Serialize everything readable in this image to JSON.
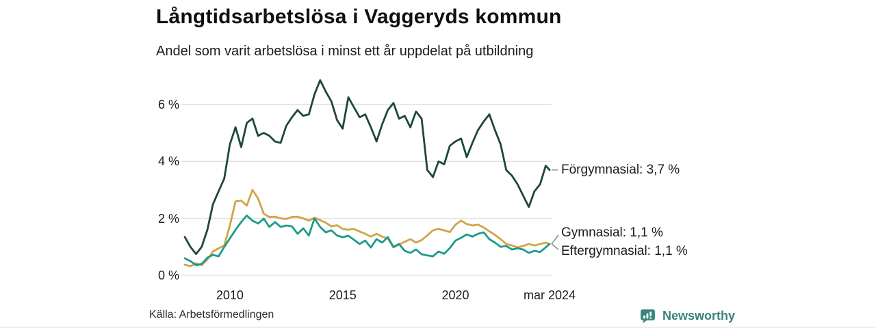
{
  "header": {
    "title": "Långtidsarbetslösa i Vaggeryds kommun",
    "subtitle": "Andel som varit arbetslösa i minst ett år uppdelat på utbildning"
  },
  "chart_data": {
    "type": "line",
    "title": "Långtidsarbetslösa i Vaggeryds kommun",
    "subtitle": "Andel som varit arbetslösa i minst ett år uppdelat på utbildning",
    "unit": "%",
    "grid": "horizontal",
    "legend_position": "end-of-line-annotations",
    "xlim": [
      2008,
      2024.17
    ],
    "ylim": [
      0,
      7.2
    ],
    "y_ticks": [
      0,
      2,
      4,
      6
    ],
    "y_tick_labels": [
      "0 %",
      "2 %",
      "4 %",
      "6 %"
    ],
    "x_ticks": [
      {
        "label": "2010",
        "year": 2010
      },
      {
        "label": "2015",
        "year": 2015
      },
      {
        "label": "2020",
        "year": 2020
      },
      {
        "label": "mar 2024",
        "year": 2024.17
      }
    ],
    "x": [
      2008,
      2008.25,
      2008.5,
      2008.75,
      2009,
      2009.25,
      2009.5,
      2009.75,
      2010,
      2010.25,
      2010.5,
      2010.75,
      2011,
      2011.25,
      2011.5,
      2011.75,
      2012,
      2012.25,
      2012.5,
      2012.75,
      2013,
      2013.25,
      2013.5,
      2013.75,
      2014,
      2014.25,
      2014.5,
      2014.75,
      2015,
      2015.25,
      2015.5,
      2015.75,
      2016,
      2016.25,
      2016.5,
      2016.75,
      2017,
      2017.25,
      2017.5,
      2017.75,
      2018,
      2018.25,
      2018.5,
      2018.75,
      2019,
      2019.25,
      2019.5,
      2019.75,
      2020,
      2020.25,
      2020.5,
      2020.75,
      2021,
      2021.25,
      2021.5,
      2021.75,
      2022,
      2022.25,
      2022.5,
      2022.75,
      2023,
      2023.25,
      2023.5,
      2023.75,
      2024,
      2024.17
    ],
    "series": [
      {
        "name": "Förgymnasial",
        "end_label": "Förgymnasial: 3,7 %",
        "end_value_pct": 3.7,
        "color": "#1d463c",
        "values": [
          1.35,
          1.0,
          0.75,
          1.0,
          1.6,
          2.5,
          2.95,
          3.4,
          4.6,
          5.2,
          4.5,
          5.35,
          5.5,
          4.9,
          5.0,
          4.9,
          4.7,
          4.65,
          5.25,
          5.55,
          5.8,
          5.6,
          5.65,
          6.35,
          6.85,
          6.45,
          6.1,
          5.45,
          5.15,
          6.25,
          5.9,
          5.55,
          5.65,
          5.2,
          4.7,
          5.3,
          5.8,
          6.05,
          5.5,
          5.6,
          5.2,
          5.75,
          5.5,
          3.7,
          3.45,
          4.0,
          3.9,
          4.55,
          4.7,
          4.8,
          4.15,
          4.65,
          5.1,
          5.4,
          5.65,
          5.1,
          4.6,
          3.7,
          3.5,
          3.2,
          2.8,
          2.4,
          2.95,
          3.2,
          3.85,
          3.7
        ]
      },
      {
        "name": "Gymnasial",
        "end_label": "Gymnasial: 1,1 %",
        "end_value_pct": 1.1,
        "color": "#d1a349",
        "values": [
          0.38,
          0.32,
          0.42,
          0.36,
          0.55,
          0.84,
          0.95,
          1.05,
          1.75,
          2.6,
          2.62,
          2.45,
          3.0,
          2.7,
          2.16,
          2.05,
          2.06,
          2.0,
          1.98,
          2.05,
          2.06,
          2.0,
          1.92,
          2.02,
          1.94,
          1.85,
          1.72,
          1.76,
          1.63,
          1.6,
          1.63,
          1.54,
          1.46,
          1.36,
          1.46,
          1.36,
          1.3,
          0.98,
          1.08,
          1.18,
          1.27,
          1.15,
          1.24,
          1.4,
          1.58,
          1.63,
          1.58,
          1.52,
          1.78,
          1.92,
          1.8,
          1.75,
          1.78,
          1.68,
          1.55,
          1.42,
          1.27,
          1.1,
          1.05,
          0.98,
          1.03,
          1.1,
          1.05,
          1.1,
          1.15,
          1.1
        ]
      },
      {
        "name": "Eftergymnasial",
        "end_label": "Eftergymnasial: 1,1 %",
        "end_value_pct": 1.1,
        "color": "#1a9c8b",
        "values": [
          0.6,
          0.5,
          0.36,
          0.4,
          0.62,
          0.72,
          0.67,
          1.0,
          1.3,
          1.6,
          1.87,
          2.1,
          1.92,
          1.82,
          1.99,
          1.7,
          1.87,
          1.7,
          1.75,
          1.72,
          1.46,
          1.65,
          1.4,
          2.0,
          1.7,
          1.51,
          1.58,
          1.4,
          1.34,
          1.39,
          1.25,
          1.1,
          1.22,
          0.98,
          1.27,
          1.15,
          1.34,
          1.0,
          1.1,
          0.86,
          0.79,
          0.91,
          0.74,
          0.7,
          0.67,
          0.84,
          0.76,
          0.96,
          1.22,
          1.32,
          1.44,
          1.36,
          1.46,
          1.51,
          1.27,
          1.15,
          1.0,
          1.03,
          0.91,
          0.95,
          0.91,
          0.79,
          0.86,
          0.82,
          0.98,
          1.1
        ]
      }
    ]
  },
  "footer": {
    "source": "Källa: Arbetsförmedlingen",
    "brand": "Newsworthy"
  },
  "colors": {
    "grid": "#e2e2e2",
    "connector": "#8a8a8a",
    "brand_teal": "#38847c",
    "title_text": "#101010",
    "body_text": "#1b1b1b"
  }
}
